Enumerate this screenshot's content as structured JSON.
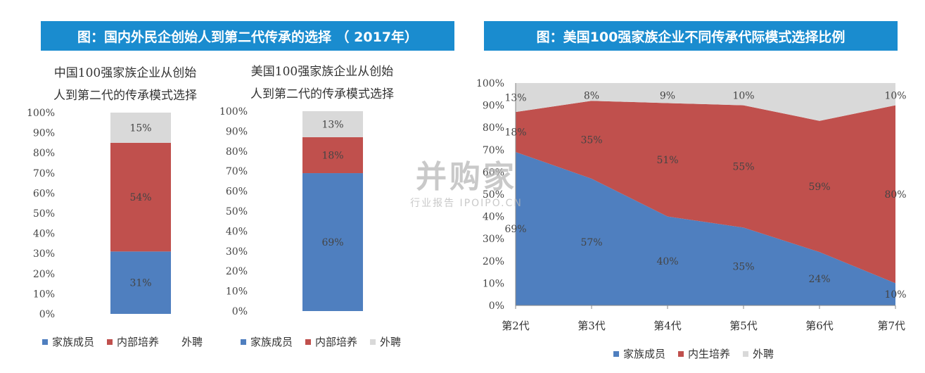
{
  "titles": {
    "left_banner": "图：国内外民企创始人到第二代传承的选择 （ 2017年）",
    "right_banner": "图：美国100强家族企业不同传承代际模式选择比例"
  },
  "watermark": {
    "main": "并购家",
    "sub": "行业报告 IPOIPO.CN"
  },
  "colors": {
    "family": "#4f7fbf",
    "internal": "#c0504d",
    "external": "#d9d9d9",
    "banner": "#1a8ccf"
  },
  "chart_data": [
    {
      "type": "bar",
      "stacked": true,
      "title": "中国100强家族企业从创始人到第二代的传承模式选择",
      "title_lines": [
        "中国100强家族企业从创始",
        "人到第二代的传承模式选择"
      ],
      "yticks": [
        "0%",
        "10%",
        "20%",
        "30%",
        "40%",
        "50%",
        "60%",
        "70%",
        "80%",
        "90%",
        "100%"
      ],
      "ylim": [
        0,
        100
      ],
      "series": [
        {
          "name": "家族成员",
          "values": [
            31
          ],
          "label": "31%",
          "color": "#4f7fbf"
        },
        {
          "name": "内部培养",
          "values": [
            54
          ],
          "label": "54%",
          "color": "#c0504d"
        },
        {
          "name": "外聘",
          "values": [
            15
          ],
          "label": "15%",
          "color": "#d9d9d9"
        }
      ]
    },
    {
      "type": "bar",
      "stacked": true,
      "title": "美国100强家族企业从创始人到第二代的传承模式选择",
      "title_lines": [
        "美国100强家族企业从创始",
        "人到第二代的传承模式选择"
      ],
      "yticks": [
        "0%",
        "10%",
        "20%",
        "30%",
        "40%",
        "50%",
        "60%",
        "70%",
        "80%",
        "90%",
        "100%"
      ],
      "ylim": [
        0,
        100
      ],
      "series": [
        {
          "name": "家族成员",
          "values": [
            69
          ],
          "label": "69%",
          "color": "#4f7fbf"
        },
        {
          "name": "内部培养",
          "values": [
            18
          ],
          "label": "18%",
          "color": "#c0504d"
        },
        {
          "name": "外聘",
          "values": [
            13
          ],
          "label": "13%",
          "color": "#d9d9d9"
        }
      ]
    },
    {
      "type": "area",
      "stacked": true,
      "categories": [
        "第2代",
        "第3代",
        "第4代",
        "第5代",
        "第6代",
        "第7代"
      ],
      "yticks": [
        "0%",
        "10%",
        "20%",
        "30%",
        "40%",
        "50%",
        "60%",
        "70%",
        "80%",
        "90%",
        "100%"
      ],
      "ylim": [
        0,
        100
      ],
      "series": [
        {
          "name": "家族成员",
          "values": [
            69,
            57,
            40,
            35,
            24,
            10
          ],
          "labels": [
            "69%",
            "57%",
            "40%",
            "35%",
            "24%",
            "10%"
          ],
          "color": "#4f7fbf"
        },
        {
          "name": "内生培养",
          "values": [
            18,
            35,
            51,
            55,
            59,
            80
          ],
          "labels": [
            "18%",
            "35%",
            "51%",
            "55%",
            "59%",
            "80%"
          ],
          "color": "#c0504d"
        },
        {
          "name": "外聘",
          "values": [
            13,
            8,
            9,
            10,
            17,
            10
          ],
          "labels": [
            "13%",
            "8%",
            "9%",
            "10%",
            "",
            "10%"
          ],
          "color": "#d9d9d9"
        }
      ]
    }
  ],
  "legends": {
    "left": [
      {
        "name": "家族成员",
        "color": "#4f7fbf"
      },
      {
        "name": "内部培养",
        "color": "#c0504d"
      },
      {
        "name": "外聘",
        "color": ""
      }
    ],
    "middle": [
      {
        "name": "家族成员",
        "color": "#4f7fbf"
      },
      {
        "name": "内部培养",
        "color": "#c0504d"
      },
      {
        "name": "外聘",
        "color": "#d9d9d9"
      }
    ],
    "right": [
      {
        "name": "家族成员",
        "color": "#4f7fbf"
      },
      {
        "name": "内生培养",
        "color": "#c0504d"
      },
      {
        "name": "外聘",
        "color": "#d9d9d9"
      }
    ]
  }
}
